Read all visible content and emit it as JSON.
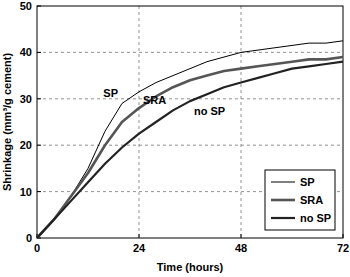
{
  "chart_data": {
    "type": "line",
    "x_label": "Time (hours)",
    "y_label": "Shrinkage (mm³/g cement)",
    "x": [
      0,
      4,
      8,
      12,
      16,
      20,
      24,
      28,
      32,
      36,
      40,
      44,
      48,
      52,
      56,
      60,
      64,
      68,
      72
    ],
    "series": [
      {
        "name": "SP",
        "color": "#000000",
        "line_style": "solid",
        "values": [
          0,
          4,
          9,
          15,
          23,
          29,
          31.5,
          33.5,
          35,
          36.5,
          38,
          39,
          40,
          40.5,
          41,
          41.5,
          42,
          42,
          42.5
        ]
      },
      {
        "name": "SRA",
        "color": "#555555",
        "line_style": "solid",
        "values": [
          0,
          4,
          9,
          14,
          20,
          25,
          28,
          30.5,
          32.5,
          34,
          35,
          36,
          36.5,
          37,
          37.5,
          38,
          38.5,
          38.5,
          39
        ]
      },
      {
        "name": "no SP",
        "color": "#222222",
        "line_style": "solid",
        "values": [
          0,
          4,
          8,
          12,
          16,
          19.5,
          22.5,
          25,
          27.5,
          29.5,
          31,
          32.5,
          33.5,
          34.5,
          35.5,
          36.5,
          37,
          37.5,
          38
        ]
      }
    ],
    "xlim": [
      0,
      72
    ],
    "ylim": [
      0,
      50
    ],
    "xticks": [
      0,
      24,
      48,
      72
    ],
    "yticks": [
      0,
      10,
      20,
      30,
      40,
      50
    ],
    "grid": true,
    "legend": "lower right"
  }
}
